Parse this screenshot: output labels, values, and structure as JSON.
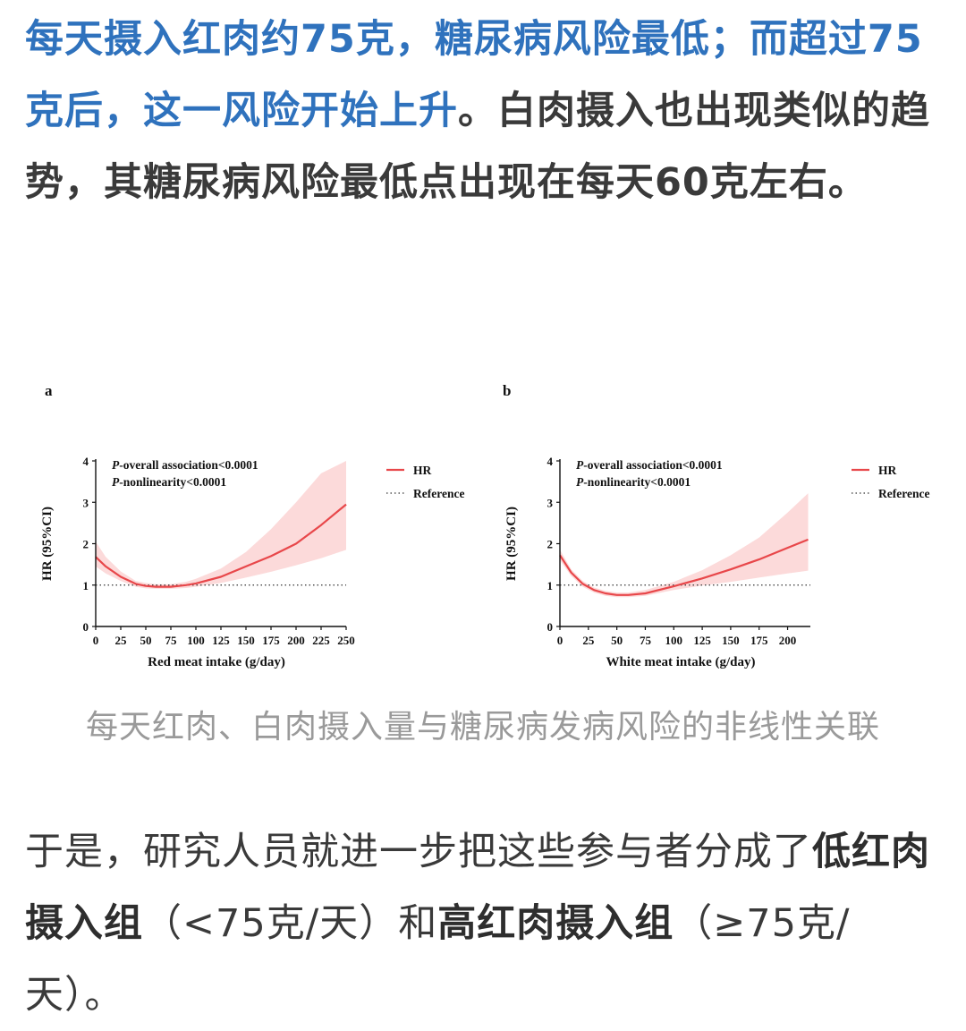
{
  "article": {
    "para1": {
      "highlight": "每天摄入红肉约75克，糖尿病风险最低；而超过75克后，这一风险开始上升",
      "rest": "。白肉摄入也出现类似的趋势，其糖尿病风险最低点出现在每天60克左右。"
    },
    "caption": "每天红肉、白肉摄入量与糖尿病发病风险的非线性关联",
    "para2": {
      "part1": "于是，研究人员就进一步把这些参与者分成了",
      "bold1": "低红肉摄入组",
      "part2": "（<75克/天）和",
      "bold2": "高红肉摄入组",
      "part3": "（≥75克/天）。"
    }
  },
  "colors": {
    "highlight_text": "#2f72bd",
    "hr_line": "#e8474a",
    "ci_band": "#fbd3d4"
  },
  "chart_data": [
    {
      "type": "line",
      "panel_label": "a",
      "xlabel": "Red meat intake (g/day)",
      "ylabel": "HR (95%CI)",
      "xlim": [
        0,
        250
      ],
      "ylim": [
        0,
        4
      ],
      "xticks": [
        0,
        25,
        50,
        75,
        100,
        125,
        150,
        175,
        200,
        225,
        250
      ],
      "yticks": [
        0,
        1,
        2,
        3,
        4
      ],
      "annotations": [
        {
          "p": "P",
          "text": "-overall association<0.0001"
        },
        {
          "p": "P",
          "text": "-nonlinearity<0.0001"
        }
      ],
      "legend": [
        "HR",
        "Reference"
      ],
      "legend_position": "right",
      "reference_y": 1,
      "series": [
        {
          "name": "HR",
          "x": [
            0,
            10,
            25,
            40,
            50,
            60,
            75,
            90,
            100,
            125,
            150,
            175,
            200,
            225,
            250
          ],
          "y": [
            1.68,
            1.45,
            1.2,
            1.03,
            0.98,
            0.96,
            0.96,
            1.0,
            1.04,
            1.2,
            1.45,
            1.7,
            2.0,
            2.45,
            2.95
          ],
          "lower": [
            1.45,
            1.28,
            1.1,
            0.96,
            0.92,
            0.91,
            0.91,
            0.93,
            0.96,
            1.05,
            1.18,
            1.32,
            1.48,
            1.65,
            1.85
          ],
          "upper": [
            2.05,
            1.68,
            1.33,
            1.1,
            1.05,
            1.02,
            1.02,
            1.08,
            1.15,
            1.4,
            1.8,
            2.35,
            3.0,
            3.7,
            4.0
          ]
        }
      ]
    },
    {
      "type": "line",
      "panel_label": "b",
      "xlabel": "White meat intake (g/day)",
      "ylabel": "HR (95%CI)",
      "xlim": [
        0,
        220
      ],
      "ylim": [
        0,
        4
      ],
      "xticks": [
        0,
        25,
        50,
        75,
        100,
        125,
        150,
        175,
        200
      ],
      "yticks": [
        0,
        1,
        2,
        3,
        4
      ],
      "annotations": [
        {
          "p": "P",
          "text": "-overall association<0.0001"
        },
        {
          "p": "P",
          "text": "-nonlinearity<0.0001"
        }
      ],
      "legend": [
        "HR",
        "Reference"
      ],
      "legend_position": "right",
      "reference_y": 1,
      "series": [
        {
          "name": "HR",
          "x": [
            0,
            10,
            20,
            30,
            40,
            50,
            60,
            75,
            100,
            125,
            150,
            175,
            200,
            218
          ],
          "y": [
            1.72,
            1.3,
            1.03,
            0.88,
            0.8,
            0.76,
            0.76,
            0.8,
            0.97,
            1.16,
            1.38,
            1.62,
            1.9,
            2.1
          ],
          "lower": [
            1.6,
            1.22,
            0.96,
            0.82,
            0.74,
            0.71,
            0.71,
            0.74,
            0.88,
            0.99,
            1.08,
            1.18,
            1.28,
            1.35
          ],
          "upper": [
            1.85,
            1.38,
            1.1,
            0.94,
            0.86,
            0.82,
            0.82,
            0.88,
            1.08,
            1.36,
            1.72,
            2.15,
            2.75,
            3.22
          ]
        }
      ]
    }
  ]
}
